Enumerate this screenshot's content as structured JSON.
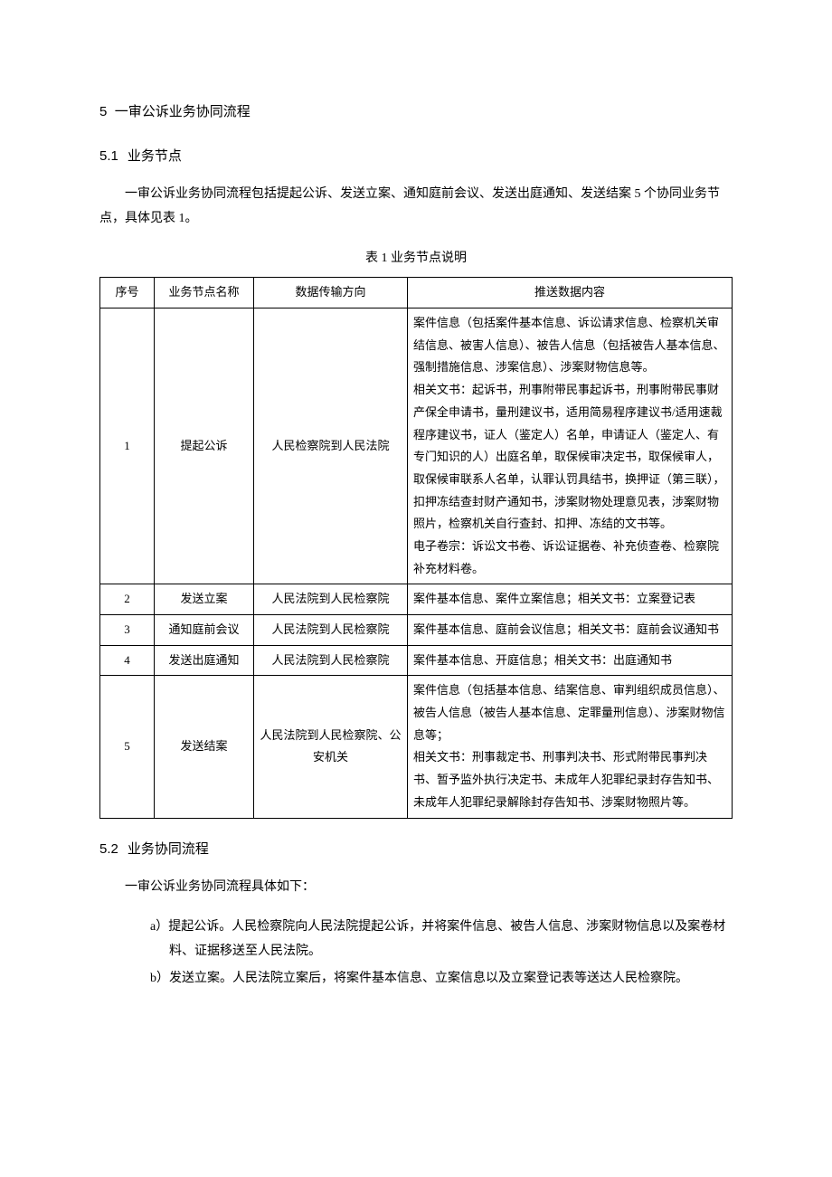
{
  "section5": {
    "number": "5",
    "title": "一审公诉业务协同流程"
  },
  "section5_1": {
    "number": "5.1",
    "title": "业务节点",
    "intro": "一审公诉业务协同流程包括提起公诉、发送立案、通知庭前会议、发送出庭通知、发送结案 5 个协同业务节点，具体见表 1。"
  },
  "table1": {
    "caption": "表 1 业务节点说明",
    "headers": {
      "seq": "序号",
      "name": "业务节点名称",
      "direction": "数据传输方向",
      "content": "推送数据内容"
    },
    "rows": [
      {
        "seq": "1",
        "name": "提起公诉",
        "direction": "人民检察院到人民法院",
        "content": "案件信息（包括案件基本信息、诉讼请求信息、检察机关审结信息、被害人信息）、被告人信息（包括被告人基本信息、强制措施信息、涉案信息）、涉案财物信息等。\n相关文书：起诉书，刑事附带民事起诉书，刑事附带民事财产保全申请书，量刑建议书，适用简易程序建议书/适用速裁程序建议书，证人（鉴定人）名单，申请证人（鉴定人、有专门知识的人）出庭名单，取保候审决定书，取保候审人，取保候审联系人名单，认罪认罚具结书，换押证（第三联），扣押冻结查封财产通知书，涉案财物处理意见表，涉案财物照片，检察机关自行查封、扣押、冻结的文书等。\n电子卷宗：诉讼文书卷、诉讼证据卷、补充侦查卷、检察院补充材料卷。"
      },
      {
        "seq": "2",
        "name": "发送立案",
        "direction": "人民法院到人民检察院",
        "content": "案件基本信息、案件立案信息；相关文书：立案登记表"
      },
      {
        "seq": "3",
        "name": "通知庭前会议",
        "direction": "人民法院到人民检察院",
        "content": "案件基本信息、庭前会议信息；相关文书：庭前会议通知书"
      },
      {
        "seq": "4",
        "name": "发送出庭通知",
        "direction": "人民法院到人民检察院",
        "content": "案件基本信息、开庭信息；相关文书：出庭通知书"
      },
      {
        "seq": "5",
        "name": "发送结案",
        "direction": "人民法院到人民检察院、公安机关",
        "content": "案件信息（包括基本信息、结案信息、审判组织成员信息）、被告人信息（被告人基本信息、定罪量刑信息）、涉案财物信息等；\n相关文书：刑事裁定书、刑事判决书、形式附带民事判决书、暂予监外执行决定书、未成年人犯罪纪录封存告知书、未成年人犯罪纪录解除封存告知书、涉案财物照片等。"
      }
    ]
  },
  "section5_2": {
    "number": "5.2",
    "title": "业务协同流程",
    "intro": "一审公诉业务协同流程具体如下：",
    "items": [
      {
        "label": "a）",
        "text": "提起公诉。人民检察院向人民法院提起公诉，并将案件信息、被告人信息、涉案财物信息以及案卷材料、证据移送至人民法院。"
      },
      {
        "label": "b）",
        "text": "发送立案。人民法院立案后，将案件基本信息、立案信息以及立案登记表等送达人民检察院。"
      }
    ]
  }
}
